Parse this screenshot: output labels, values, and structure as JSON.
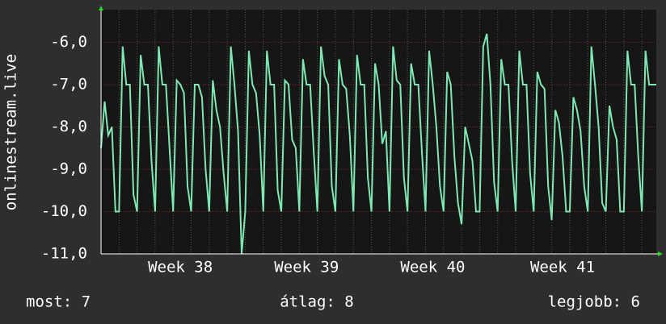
{
  "chart_data": {
    "type": "line",
    "y_label": "onlinestream.live",
    "categories": [
      null,
      null,
      null,
      null,
      null,
      null,
      null,
      null,
      null,
      null,
      null,
      null,
      null,
      null,
      null,
      null,
      null,
      null,
      null,
      null,
      null,
      null,
      "Week 38",
      null,
      null,
      null,
      null,
      null,
      null,
      null,
      null,
      null,
      null,
      null,
      null,
      null,
      null,
      null,
      null,
      null,
      null,
      null,
      null,
      null,
      null,
      null,
      null,
      null,
      null,
      null,
      null,
      null,
      null,
      null,
      null,
      null,
      null,
      "Week 39",
      null,
      null,
      null,
      null,
      null,
      null,
      null,
      null,
      null,
      null,
      null,
      null,
      null,
      null,
      null,
      null,
      null,
      null,
      null,
      null,
      null,
      null,
      null,
      null,
      null,
      null,
      null,
      null,
      null,
      null,
      null,
      null,
      null,
      null,
      "Week 40",
      null,
      null,
      null,
      null,
      null,
      null,
      null,
      null,
      null,
      null,
      null,
      null,
      null,
      null,
      null,
      null,
      null,
      null,
      null,
      null,
      null,
      null,
      null,
      null,
      null,
      null,
      null,
      null,
      null,
      null,
      null,
      null,
      null,
      null,
      null,
      "Week 41",
      null,
      null,
      null,
      null,
      null,
      null,
      null,
      null,
      null,
      null,
      null,
      null,
      null,
      null,
      null,
      null,
      null,
      null,
      null,
      null,
      null,
      null,
      null,
      null,
      null,
      null
    ],
    "series": [
      {
        "name": "onlinestream.live",
        "color": "#7ee8b4",
        "values": [
          -8.5,
          -7.4,
          -8.2,
          -8.0,
          -10.0,
          -10.0,
          -6.1,
          -7.0,
          -7.0,
          -9.6,
          -10.0,
          -6.3,
          -7.0,
          -7.0,
          -8.8,
          -10.0,
          -6.1,
          -7.0,
          -7.0,
          -8.5,
          -10.0,
          -6.9,
          -7.0,
          -7.2,
          -9.4,
          -10.0,
          -7.0,
          -7.0,
          -7.3,
          -9.0,
          -10.0,
          -6.9,
          -7.6,
          -8.0,
          -9.1,
          -10.0,
          -6.1,
          -7.0,
          -8.1,
          -11.0,
          -10.0,
          -6.2,
          -7.0,
          -7.2,
          -8.2,
          -10.0,
          -6.2,
          -7.0,
          -7.0,
          -9.5,
          -10.0,
          -6.9,
          -7.0,
          -8.3,
          -8.5,
          -10.0,
          -6.4,
          -7.0,
          -7.0,
          -8.6,
          -10.0,
          -6.1,
          -6.8,
          -7.0,
          -9.4,
          -10.0,
          -6.4,
          -7.0,
          -7.1,
          -8.2,
          -10.0,
          -6.3,
          -7.0,
          -7.0,
          -9.2,
          -10.0,
          -6.5,
          -7.0,
          -8.4,
          -8.1,
          -10.0,
          -6.1,
          -6.9,
          -7.0,
          -9.2,
          -10.0,
          -6.5,
          -7.0,
          -7.0,
          -8.6,
          -10.0,
          -6.2,
          -7.0,
          -8.0,
          -9.4,
          -10.0,
          -6.7,
          -7.0,
          -8.7,
          -9.8,
          -10.3,
          -8.0,
          -8.4,
          -8.8,
          -10.0,
          -10.0,
          -6.1,
          -5.8,
          -7.0,
          -9.3,
          -10.0,
          -6.4,
          -7.0,
          -7.0,
          -8.8,
          -10.0,
          -6.2,
          -7.0,
          -7.0,
          -9.1,
          -10.0,
          -6.7,
          -7.0,
          -7.1,
          -9.4,
          -10.2,
          -7.6,
          -7.9,
          -8.7,
          -10.0,
          -10.0,
          -7.3,
          -7.6,
          -8.1,
          -9.4,
          -10.0,
          -6.1,
          -7.0,
          -8.0,
          -9.8,
          -10.0,
          -7.5,
          -8.0,
          -8.3,
          -10.0,
          -10.0,
          -6.2,
          -7.0,
          -7.0,
          -8.7,
          -10.0,
          -6.2,
          -7.0,
          -7.0,
          -7.0
        ]
      }
    ],
    "ylim": [
      -11,
      -5.23
    ],
    "yticks": [
      {
        "value": -11,
        "label": "-11,0"
      },
      {
        "value": -10,
        "label": "-10,0"
      },
      {
        "value": -9,
        "label": "-9,0"
      },
      {
        "value": -8,
        "label": "-8,0"
      },
      {
        "value": -7,
        "label": "-7,0"
      },
      {
        "value": -6,
        "label": "-6,0"
      }
    ],
    "grid": true,
    "footer": {
      "current": "most: 7",
      "average": "átlag: 8",
      "best": "legjobb: 6"
    }
  }
}
